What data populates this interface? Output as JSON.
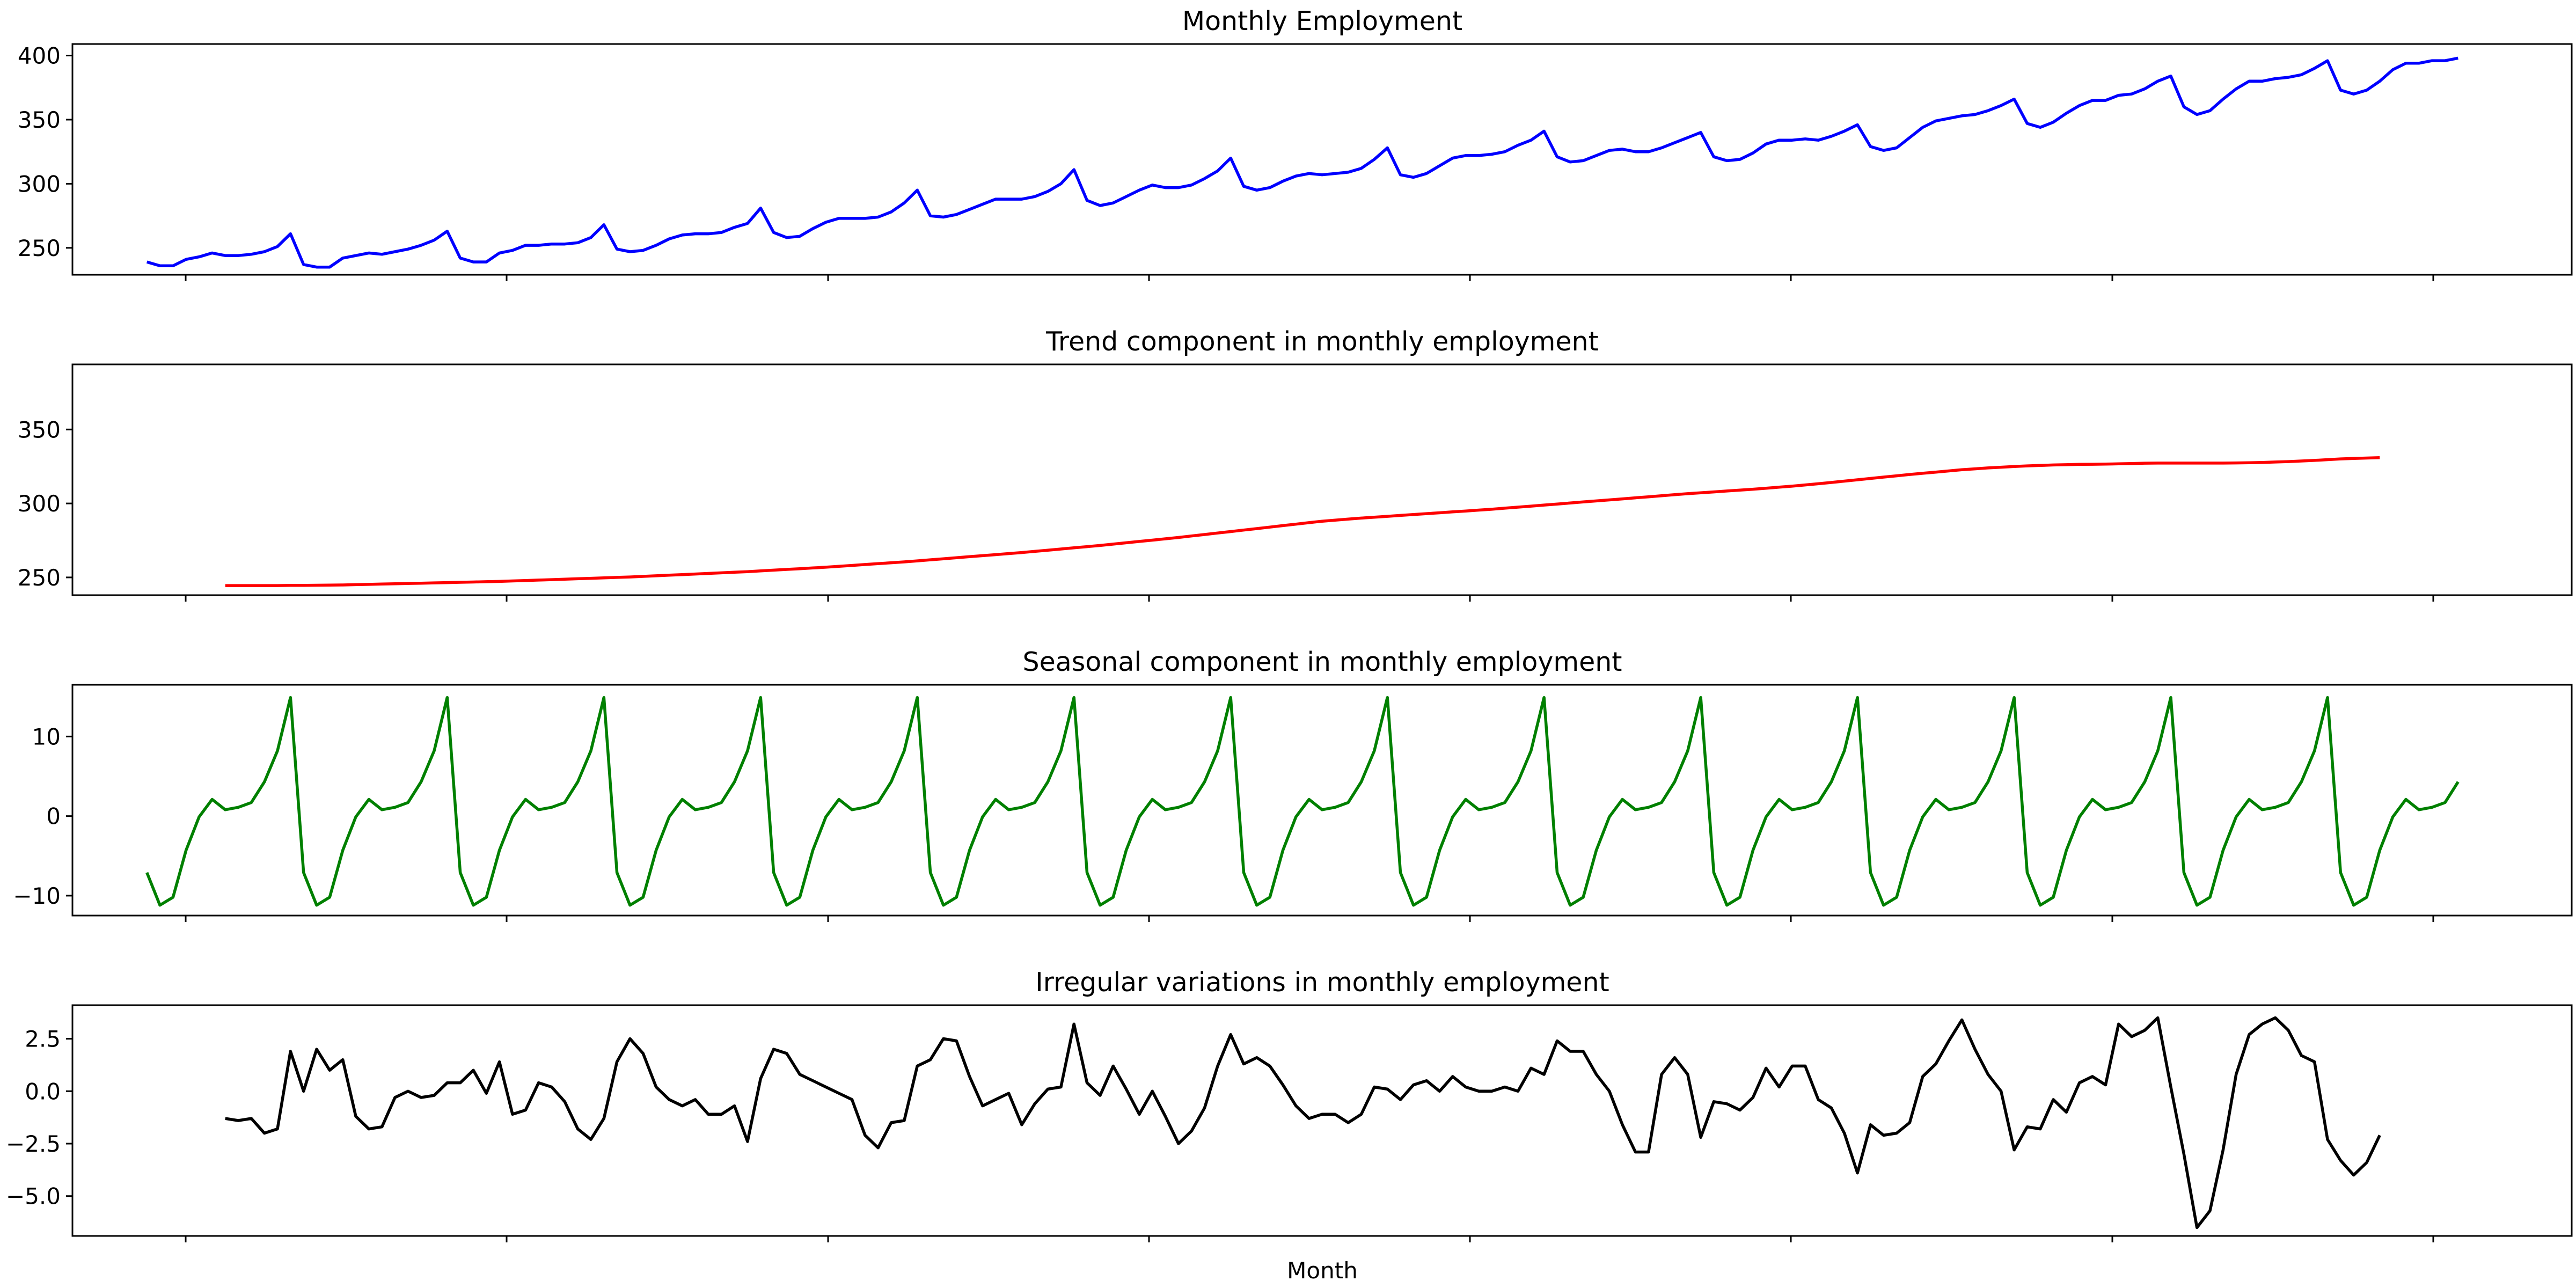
{
  "chart_data": [
    {
      "type": "line",
      "title": "Monthly Employment",
      "xlabel": "",
      "ylabel": "",
      "x": {
        "start": 0,
        "step": 1,
        "count": 178
      },
      "xlim": [
        -5.7,
        185.7
      ],
      "ylim": [
        229,
        409
      ],
      "yticks": [
        250,
        300,
        350,
        400
      ],
      "ytick_labels": [
        "250",
        "300",
        "350",
        "400"
      ],
      "grid": false,
      "color": "#0000ff",
      "series": [
        {
          "values": [
            239,
            236,
            236,
            241,
            243,
            246,
            244,
            244,
            245,
            247,
            251,
            261,
            237,
            235,
            235,
            242,
            244,
            246,
            245,
            247,
            249,
            252,
            256,
            263,
            242,
            239,
            239,
            246,
            248,
            252,
            252,
            253,
            253,
            254,
            258,
            268,
            249,
            247,
            248,
            252,
            257,
            260,
            261,
            261,
            262,
            266,
            269,
            281,
            262,
            258,
            259,
            265,
            270,
            273,
            273,
            273,
            274,
            278,
            285,
            295,
            275,
            274,
            276,
            280,
            284,
            288,
            288,
            288,
            290,
            294,
            300,
            311,
            287,
            283,
            285,
            290,
            295,
            299,
            297,
            297,
            299,
            304,
            310,
            320,
            298,
            295,
            297,
            302,
            306,
            308,
            307,
            308,
            309,
            312,
            319,
            328,
            307,
            305,
            308,
            314,
            320,
            322,
            322,
            323,
            325,
            330,
            334,
            341,
            321,
            317,
            318,
            322,
            326,
            327,
            325,
            325,
            328,
            332,
            336,
            340,
            321,
            318,
            319,
            324,
            331,
            334,
            334,
            335,
            334,
            337,
            341,
            346,
            329,
            326,
            328,
            336,
            344,
            349,
            351,
            353,
            354,
            357,
            361,
            366,
            347,
            344,
            348,
            355,
            361,
            365,
            365,
            369,
            370,
            374,
            380,
            384,
            360,
            354,
            357,
            366,
            374,
            380,
            380,
            382,
            383,
            385,
            390,
            396,
            373,
            370,
            373,
            380,
            389,
            394,
            394,
            396,
            396,
            398
          ]
        }
      ]
    },
    {
      "type": "line",
      "title": "Trend component in monthly employment",
      "xlabel": "",
      "ylabel": "",
      "x": {
        "start": 6,
        "step": 1,
        "count": 166
      },
      "xlim": [
        -5.7,
        185.7
      ],
      "ylim": [
        238,
        394
      ],
      "yticks": [
        250,
        300,
        350
      ],
      "ytick_labels": [
        "250",
        "300",
        "350"
      ],
      "grid": false,
      "color": "#ff0000",
      "series": [
        {
          "values": [
            244.5,
            244.5,
            244.5,
            244.5,
            244.5,
            244.6,
            244.6,
            244.7,
            244.8,
            244.9,
            245.1,
            245.3,
            245.5,
            245.7,
            245.9,
            246.1,
            246.3,
            246.5,
            246.7,
            246.9,
            247.1,
            247.3,
            247.6,
            247.9,
            248.2,
            248.5,
            248.8,
            249.1,
            249.4,
            249.7,
            250,
            250.3,
            250.7,
            251.1,
            251.5,
            251.9,
            252.3,
            252.7,
            253.1,
            253.5,
            253.9,
            254.4,
            254.9,
            255.4,
            255.9,
            256.4,
            256.9,
            257.5,
            258.1,
            258.7,
            259.3,
            259.9,
            260.5,
            261.2,
            261.9,
            262.6,
            263.3,
            264,
            264.7,
            265.4,
            266.1,
            266.8,
            267.6,
            268.4,
            269.2,
            270,
            270.8,
            271.6,
            272.5,
            273.4,
            274.3,
            275.2,
            276.1,
            277,
            278,
            279,
            280,
            281,
            282,
            283,
            284,
            285,
            286,
            287,
            288,
            288.7,
            289.4,
            290.1,
            290.7,
            291.3,
            291.9,
            292.5,
            293.1,
            293.7,
            294.3,
            294.9,
            295.5,
            296.1,
            296.8,
            297.5,
            298.2,
            298.9,
            299.6,
            300.3,
            301,
            301.7,
            302.4,
            303.1,
            303.8,
            304.5,
            305.2,
            305.9,
            306.6,
            307.2,
            307.8,
            308.4,
            309,
            309.6,
            310.3,
            311,
            311.7,
            312.5,
            313.3,
            314.2,
            315.1,
            316,
            316.9,
            317.8,
            318.7,
            319.6,
            320.4,
            321.2,
            322,
            322.8,
            323.4,
            324,
            324.5,
            325,
            325.4,
            325.7,
            326,
            326.2,
            326.4,
            326.5,
            326.6,
            326.8,
            327,
            327.2,
            327.3,
            327.3,
            327.3,
            327.3,
            327.3,
            327.3,
            327.4,
            327.5,
            327.7,
            328,
            328.3,
            328.7,
            329.1,
            329.6,
            330.1,
            330.4,
            330.7,
            331
          ]
        }
      ]
    },
    {
      "type": "line",
      "title": "Seasonal component in monthly employment",
      "xlabel": "",
      "ylabel": "",
      "x": {
        "start": 0,
        "step": 1,
        "count": 178
      },
      "xlim": [
        -5.7,
        185.7
      ],
      "ylim": [
        -12.5,
        16.5
      ],
      "yticks": [
        -10,
        0,
        10
      ],
      "ytick_labels": [
        "−10",
        "0",
        "10"
      ],
      "grid": false,
      "color": "#008000",
      "series": [
        {
          "values": [
            -7.1,
            -11.2,
            -10.2,
            -4.3,
            -0.1,
            2.1,
            0.8,
            1.1,
            1.7,
            4.3,
            8.2,
            14.9,
            -7.1,
            -11.2,
            -10.2,
            -4.3,
            -0.1,
            2.1,
            0.8,
            1.1,
            1.7,
            4.3,
            8.2,
            14.9,
            -7.1,
            -11.2,
            -10.2,
            -4.3,
            -0.1,
            2.1,
            0.8,
            1.1,
            1.7,
            4.3,
            8.2,
            14.9,
            -7.1,
            -11.2,
            -10.2,
            -4.3,
            -0.1,
            2.1,
            0.8,
            1.1,
            1.7,
            4.3,
            8.2,
            14.9,
            -7.1,
            -11.2,
            -10.2,
            -4.3,
            -0.1,
            2.1,
            0.8,
            1.1,
            1.7,
            4.3,
            8.2,
            14.9,
            -7.1,
            -11.2,
            -10.2,
            -4.3,
            -0.1,
            2.1,
            0.8,
            1.1,
            1.7,
            4.3,
            8.2,
            14.9,
            -7.1,
            -11.2,
            -10.2,
            -4.3,
            -0.1,
            2.1,
            0.8,
            1.1,
            1.7,
            4.3,
            8.2,
            14.9,
            -7.1,
            -11.2,
            -10.2,
            -4.3,
            -0.1,
            2.1,
            0.8,
            1.1,
            1.7,
            4.3,
            8.2,
            14.9,
            -7.1,
            -11.2,
            -10.2,
            -4.3,
            -0.1,
            2.1,
            0.8,
            1.1,
            1.7,
            4.3,
            8.2,
            14.9,
            -7.1,
            -11.2,
            -10.2,
            -4.3,
            -0.1,
            2.1,
            0.8,
            1.1,
            1.7,
            4.3,
            8.2,
            14.9,
            -7.1,
            -11.2,
            -10.2,
            -4.3,
            -0.1,
            2.1,
            0.8,
            1.1,
            1.7,
            4.3,
            8.2,
            14.9,
            -7.1,
            -11.2,
            -10.2,
            -4.3,
            -0.1,
            2.1,
            0.8,
            1.1,
            1.7,
            4.3,
            8.2,
            14.9,
            -7.1,
            -11.2,
            -10.2,
            -4.3,
            -0.1,
            2.1,
            0.8,
            1.1,
            1.7,
            4.3,
            8.2,
            14.9,
            -7.1,
            -11.2,
            -10.2,
            -4.3,
            -0.1,
            2.1,
            0.8,
            1.1,
            1.7,
            4.3,
            8.2,
            14.9,
            -7.1,
            -11.2,
            -10.2,
            -4.3,
            -0.1,
            2.1,
            0.8,
            1.1,
            1.7,
            4.3
          ]
        }
      ]
    },
    {
      "type": "line",
      "title": "Irregular variations in monthly employment",
      "xlabel": "Month",
      "ylabel": "",
      "x": {
        "start": 6,
        "step": 1,
        "count": 166
      },
      "xlim": [
        -5.7,
        185.7
      ],
      "ylim": [
        -6.9,
        4.1
      ],
      "yticks": [
        -5,
        -2.5,
        0,
        2.5
      ],
      "ytick_labels": [
        "−5.0",
        "−2.5",
        "0.0",
        "2.5"
      ],
      "grid": false,
      "color": "#000000",
      "series": [
        {
          "values": [
            -1.3,
            -1.4,
            -1.3,
            -2.0,
            -1.8,
            1.9,
            0.0,
            2.0,
            1.0,
            1.5,
            -1.2,
            -1.8,
            -1.7,
            -0.3,
            0.0,
            -0.3,
            -0.2,
            0.4,
            0.4,
            1.0,
            -0.1,
            1.4,
            -1.1,
            -0.9,
            0.4,
            0.2,
            -0.5,
            -1.8,
            -2.3,
            -1.3,
            1.4,
            2.5,
            1.8,
            0.2,
            -0.4,
            -0.7,
            -0.4,
            -1.1,
            -1.1,
            -0.7,
            -2.4,
            0.6,
            2.0,
            1.8,
            0.8,
            0.5,
            0.2,
            -0.1,
            -0.4,
            -2.1,
            -2.7,
            -1.5,
            -1.4,
            1.2,
            1.5,
            2.5,
            2.4,
            0.7,
            -0.7,
            -0.4,
            -0.1,
            -1.6,
            -0.6,
            0.1,
            0.2,
            3.2,
            0.4,
            -0.2,
            1.2,
            0.1,
            -1.1,
            0.0,
            -1.2,
            -2.5,
            -1.9,
            -0.8,
            1.2,
            2.7,
            1.3,
            1.6,
            1.2,
            0.3,
            -0.7,
            -1.3,
            -1.1,
            -1.1,
            -1.5,
            -1.1,
            0.2,
            0.1,
            -0.4,
            0.3,
            0.5,
            0.0,
            0.7,
            0.2,
            0.0,
            0.0,
            0.2,
            0.0,
            1.1,
            0.8,
            2.4,
            1.9,
            1.9,
            0.8,
            0.0,
            -1.6,
            -2.9,
            -2.9,
            0.8,
            1.6,
            0.8,
            -2.2,
            -0.5,
            -0.6,
            -0.9,
            -0.3,
            1.1,
            0.2,
            1.2,
            1.2,
            -0.4,
            -0.8,
            -2.0,
            -3.9,
            -1.6,
            -2.1,
            -2.0,
            -1.5,
            0.7,
            1.3,
            2.4,
            3.4,
            2.0,
            0.8,
            0.0,
            -2.8,
            -1.7,
            -1.8,
            -0.4,
            -1.0,
            0.4,
            0.7,
            0.3,
            3.2,
            2.6,
            2.9,
            3.5,
            0.2,
            -3.0,
            -6.5,
            -5.7,
            -2.8,
            0.8,
            2.7,
            3.2,
            3.5,
            2.9,
            1.7,
            1.4,
            -2.3,
            -3.3,
            -4.0,
            -3.4,
            -2.1
          ]
        }
      ]
    }
  ]
}
